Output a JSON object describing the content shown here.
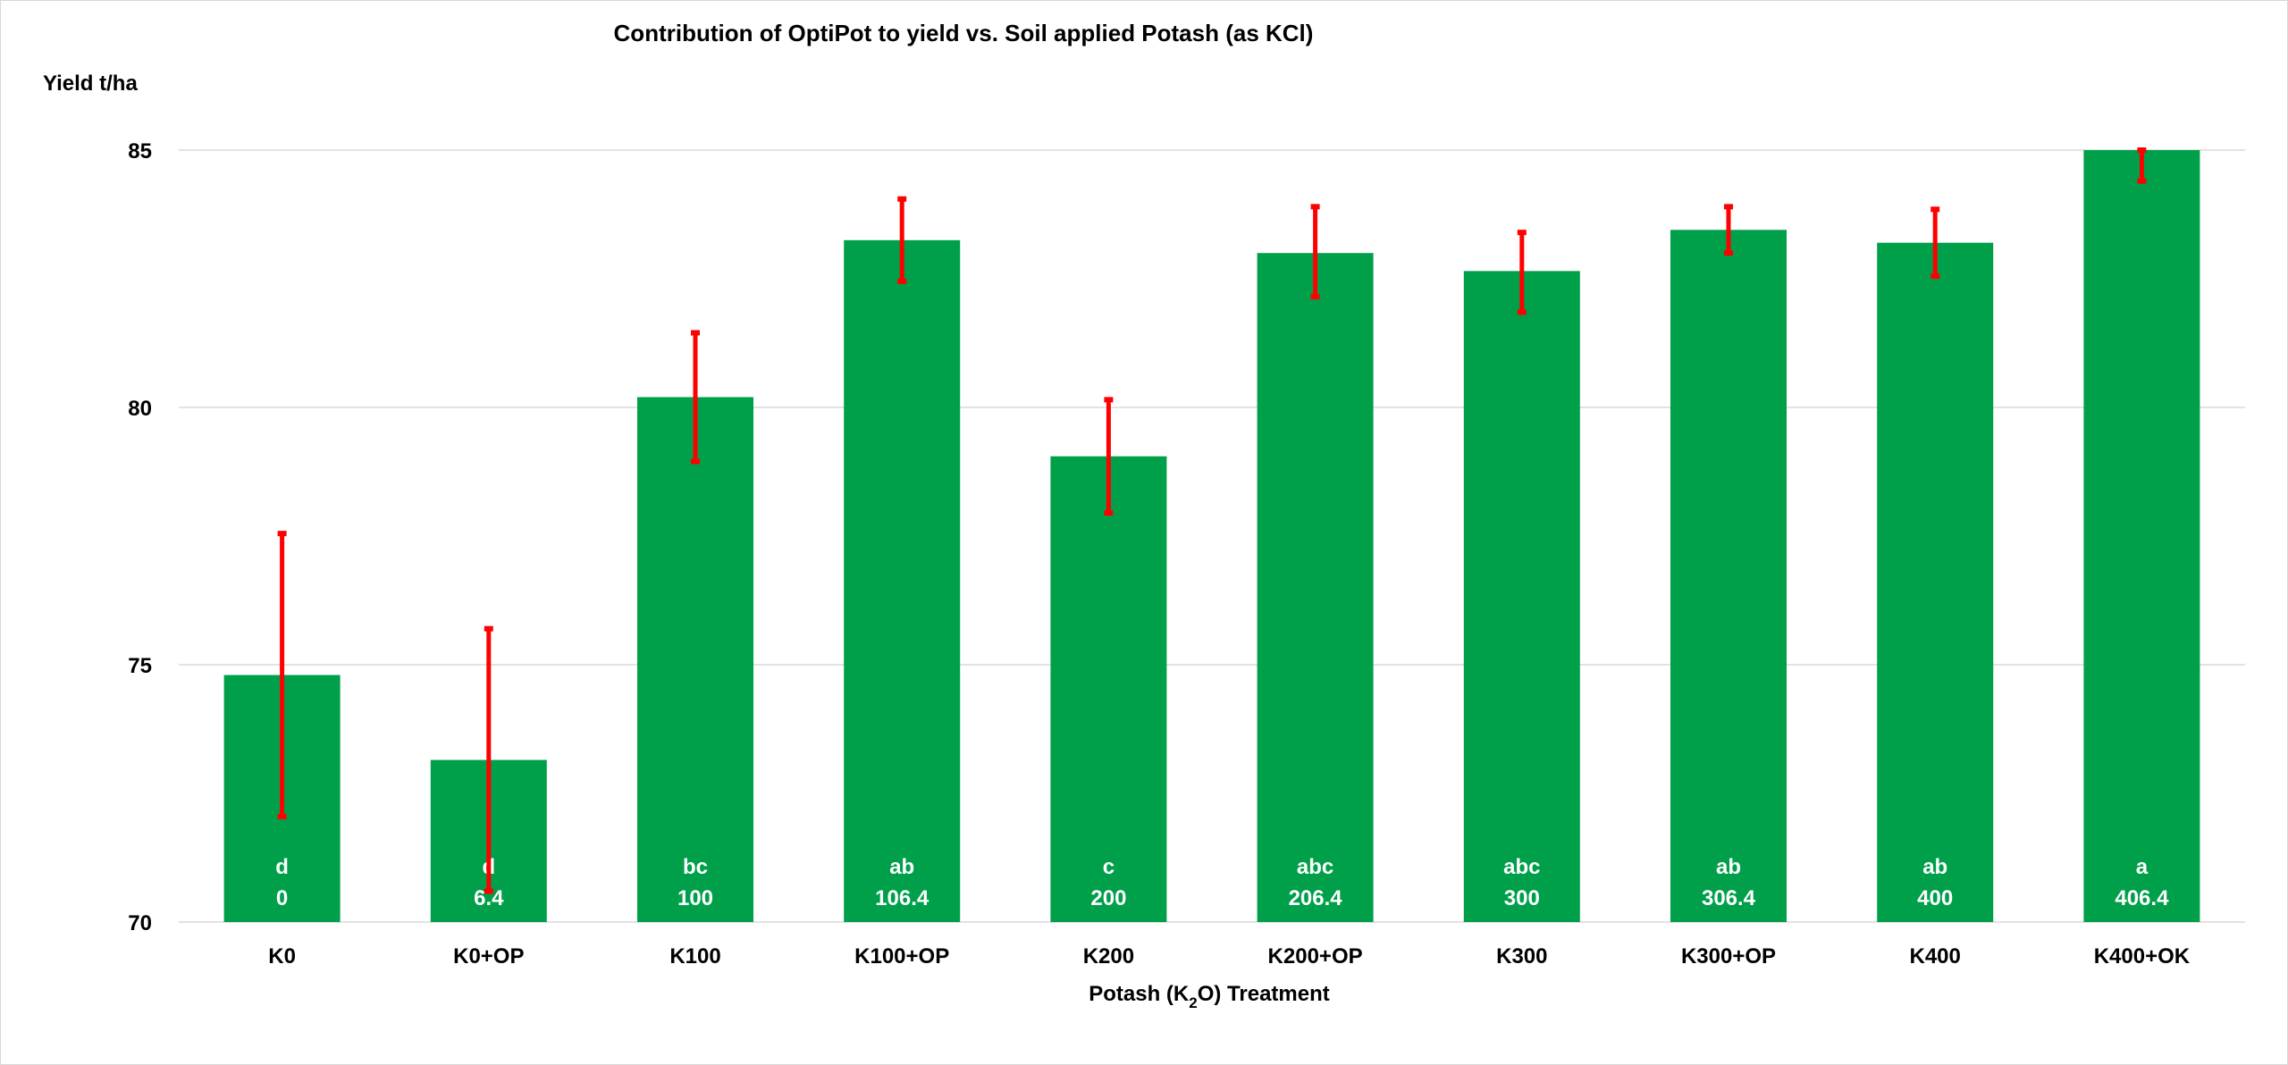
{
  "chart_data": {
    "type": "bar",
    "title": "Contribution of OptiPot to yield vs. Soil applied Potash (as KCl)",
    "ylabel": "Yield t/ha",
    "xlabel_parts": [
      "Potash (K",
      "2",
      "O) Treatment"
    ],
    "ylim": [
      70,
      85
    ],
    "yticks": [
      70,
      75,
      80,
      85
    ],
    "grid": true,
    "categories": [
      "K0",
      "K0+OP",
      "K100",
      "K100+OP",
      "K200",
      "K200+OP",
      "K300",
      "K300+OP",
      "K400",
      "K400+OK"
    ],
    "values": [
      74.8,
      73.15,
      80.2,
      83.25,
      79.05,
      83.0,
      82.65,
      83.45,
      83.2,
      85.0
    ],
    "error_low": [
      72.05,
      70.6,
      78.95,
      82.45,
      77.95,
      82.15,
      81.85,
      83.0,
      82.55,
      84.4
    ],
    "error_high": [
      77.55,
      75.7,
      81.45,
      84.05,
      80.15,
      83.9,
      83.4,
      83.9,
      83.85,
      85.0
    ],
    "significance_letters": [
      "d",
      "d",
      "bc",
      "ab",
      "c",
      "abc",
      "abc",
      "ab",
      "ab",
      "a"
    ],
    "k2o_rates": [
      "0",
      "6.4",
      "100",
      "106.4",
      "200",
      "206.4",
      "300",
      "306.4",
      "400",
      "406.4"
    ],
    "colors": {
      "bar": "#00a04b",
      "error_bar": "#ff0000",
      "grid": "#d9d9d9"
    }
  }
}
